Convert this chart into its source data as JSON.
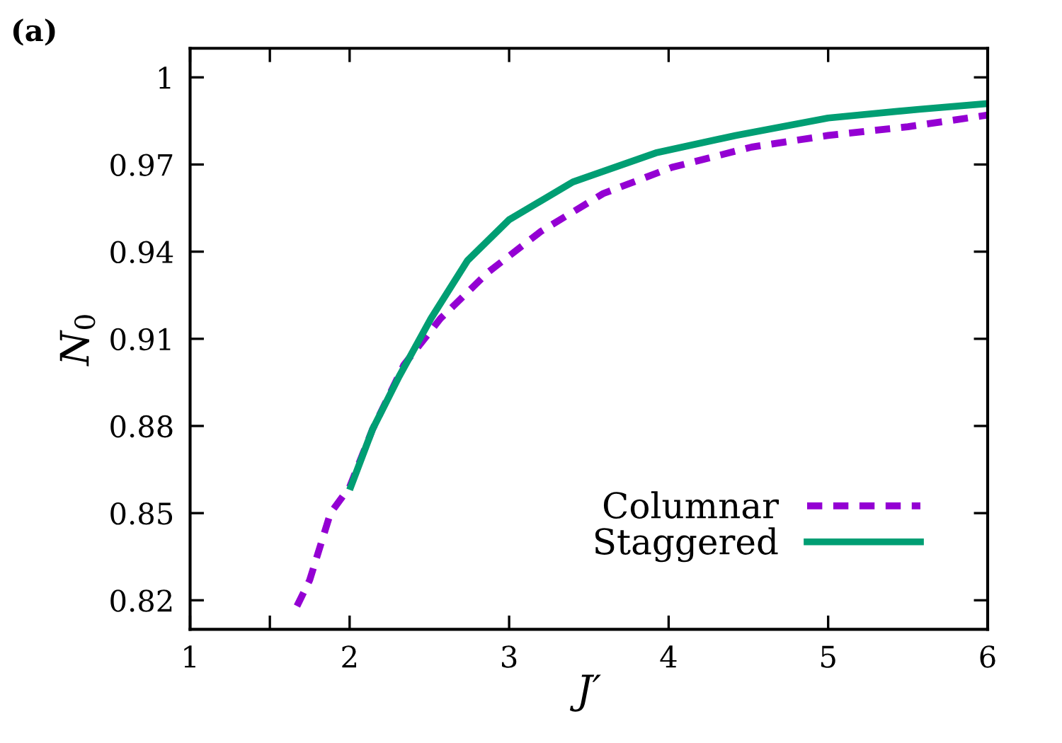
{
  "chart_data": {
    "type": "line",
    "xlabel": "J′",
    "ylabel": "N$_{0}$",
    "annotations": [
      "(a)"
    ],
    "xlim": [
      1,
      6
    ],
    "ylim": [
      0.81,
      1.01
    ],
    "xticks": [
      1,
      {
        "value": 1.5,
        "label": null
      },
      2,
      3,
      4,
      5,
      6
    ],
    "yticks": [
      0.82,
      0.85,
      0.88,
      0.91,
      0.94,
      0.97,
      1
    ],
    "legend": "bottom right",
    "grid": false,
    "series": [
      {
        "name": "Columnar",
        "color": "#9400d3",
        "line_style": "dashed",
        "x": [
          1.67,
          1.75,
          1.88,
          2.0,
          2.145,
          2.34,
          2.57,
          2.87,
          3.2,
          3.59,
          4.02,
          4.52,
          5.0,
          5.5,
          6.0
        ],
        "values": [
          0.818,
          0.827,
          0.85,
          0.859,
          0.879,
          0.901,
          0.917,
          0.933,
          0.947,
          0.96,
          0.969,
          0.976,
          0.98,
          0.983,
          0.987
        ]
      },
      {
        "name": "Staggered",
        "color": "#009e73",
        "line_style": "solid",
        "x": [
          2.0,
          2.145,
          2.31,
          2.51,
          2.74,
          3.0,
          3.4,
          3.92,
          4.42,
          5.0,
          5.57,
          6.0
        ],
        "values": [
          0.858,
          0.879,
          0.897,
          0.917,
          0.937,
          0.951,
          0.964,
          0.974,
          0.98,
          0.986,
          0.989,
          0.991
        ]
      }
    ]
  }
}
